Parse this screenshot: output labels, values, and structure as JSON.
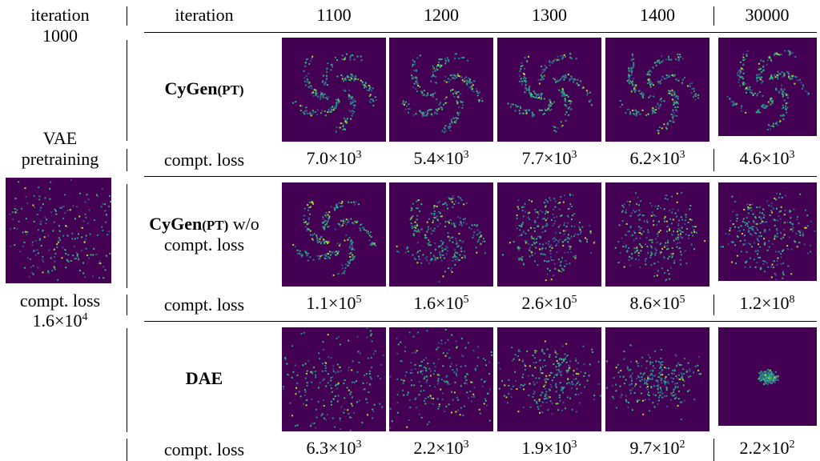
{
  "left": {
    "iteration_label": "iteration",
    "iteration_value": "1000",
    "title_line1": "VAE",
    "title_line2": "pretraining",
    "loss_label": "compt. loss",
    "loss": {
      "base": "1.6×10",
      "exp": "4"
    }
  },
  "header": {
    "label": "iteration",
    "columns": [
      "1100",
      "1200",
      "1300",
      "1400",
      "30000"
    ]
  },
  "rows": [
    {
      "label": "CyGen",
      "label_small": "(PT)",
      "suffix": "",
      "loss_label": "compt. loss",
      "losses": [
        {
          "base": "7.0×10",
          "exp": "3"
        },
        {
          "base": "5.4×10",
          "exp": "3"
        },
        {
          "base": "7.7×10",
          "exp": "3"
        },
        {
          "base": "6.2×10",
          "exp": "3"
        },
        {
          "base": "4.6×10",
          "exp": "3"
        }
      ]
    },
    {
      "label": "CyGen",
      "label_small": "(PT)",
      "suffix": "w/o compt. loss",
      "loss_label": "compt. loss",
      "losses": [
        {
          "base": "1.1×10",
          "exp": "5"
        },
        {
          "base": "1.6×10",
          "exp": "5"
        },
        {
          "base": "2.6×10",
          "exp": "5"
        },
        {
          "base": "8.6×10",
          "exp": "5"
        },
        {
          "base": "1.2×10",
          "exp": "8"
        }
      ]
    },
    {
      "label": "DAE",
      "label_small": "",
      "suffix": "",
      "loss_label": "compt. loss",
      "losses": [
        {
          "base": "6.3×10",
          "exp": "3"
        },
        {
          "base": "2.2×10",
          "exp": "3"
        },
        {
          "base": "1.9×10",
          "exp": "3"
        },
        {
          "base": "9.7×10",
          "exp": "2"
        },
        {
          "base": "2.2×10",
          "exp": "2"
        }
      ]
    }
  ]
}
